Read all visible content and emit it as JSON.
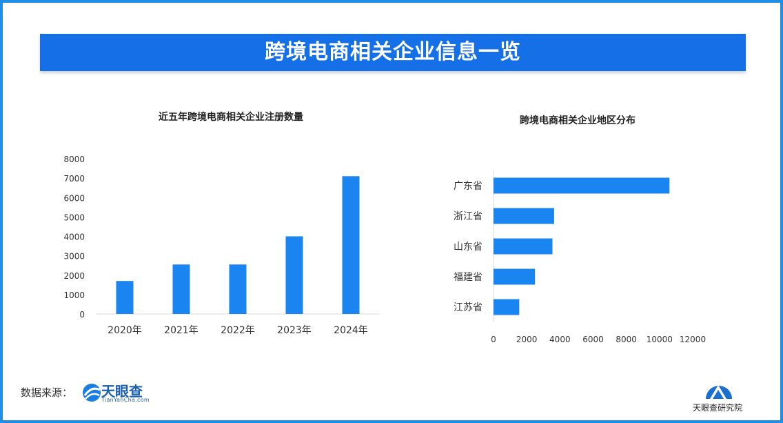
{
  "header": {
    "title": "跨境电商相关企业信息一览"
  },
  "chart_data": [
    {
      "type": "bar",
      "title": "近五年跨境电商相关企业注册数量",
      "categories": [
        "2020年",
        "2021年",
        "2022年",
        "2023年",
        "2024年"
      ],
      "values": [
        1700,
        2550,
        2550,
        4000,
        7100
      ],
      "ylim": [
        0,
        8000
      ],
      "yticks": [
        0,
        1000,
        2000,
        3000,
        4000,
        5000,
        6000,
        7000,
        8000
      ],
      "xlabel": "",
      "ylabel": "",
      "grid": false,
      "bar_color": "#1a85f0"
    },
    {
      "type": "bar",
      "orientation": "horizontal",
      "title": "跨境电商相关企业地区分布",
      "categories": [
        "广东省",
        "浙江省",
        "山东省",
        "福建省",
        "江苏省"
      ],
      "values": [
        10600,
        3650,
        3550,
        2500,
        1550
      ],
      "xlim": [
        0,
        12000
      ],
      "xticks": [
        0,
        2000,
        4000,
        6000,
        8000,
        10000,
        12000
      ],
      "xlabel": "",
      "ylabel": "",
      "grid": false,
      "bar_color": "#1a85f0"
    }
  ],
  "footer": {
    "source_label": "数据来源：",
    "source_logo_name": "天眼查",
    "source_logo_url": "TianYanCha.com",
    "institute_name": "天眼查研究院"
  },
  "colors": {
    "frame": "#1f8fe5",
    "banner": "#1570e8",
    "bar": "#1a85f0",
    "brand": "#1a5fb0"
  }
}
